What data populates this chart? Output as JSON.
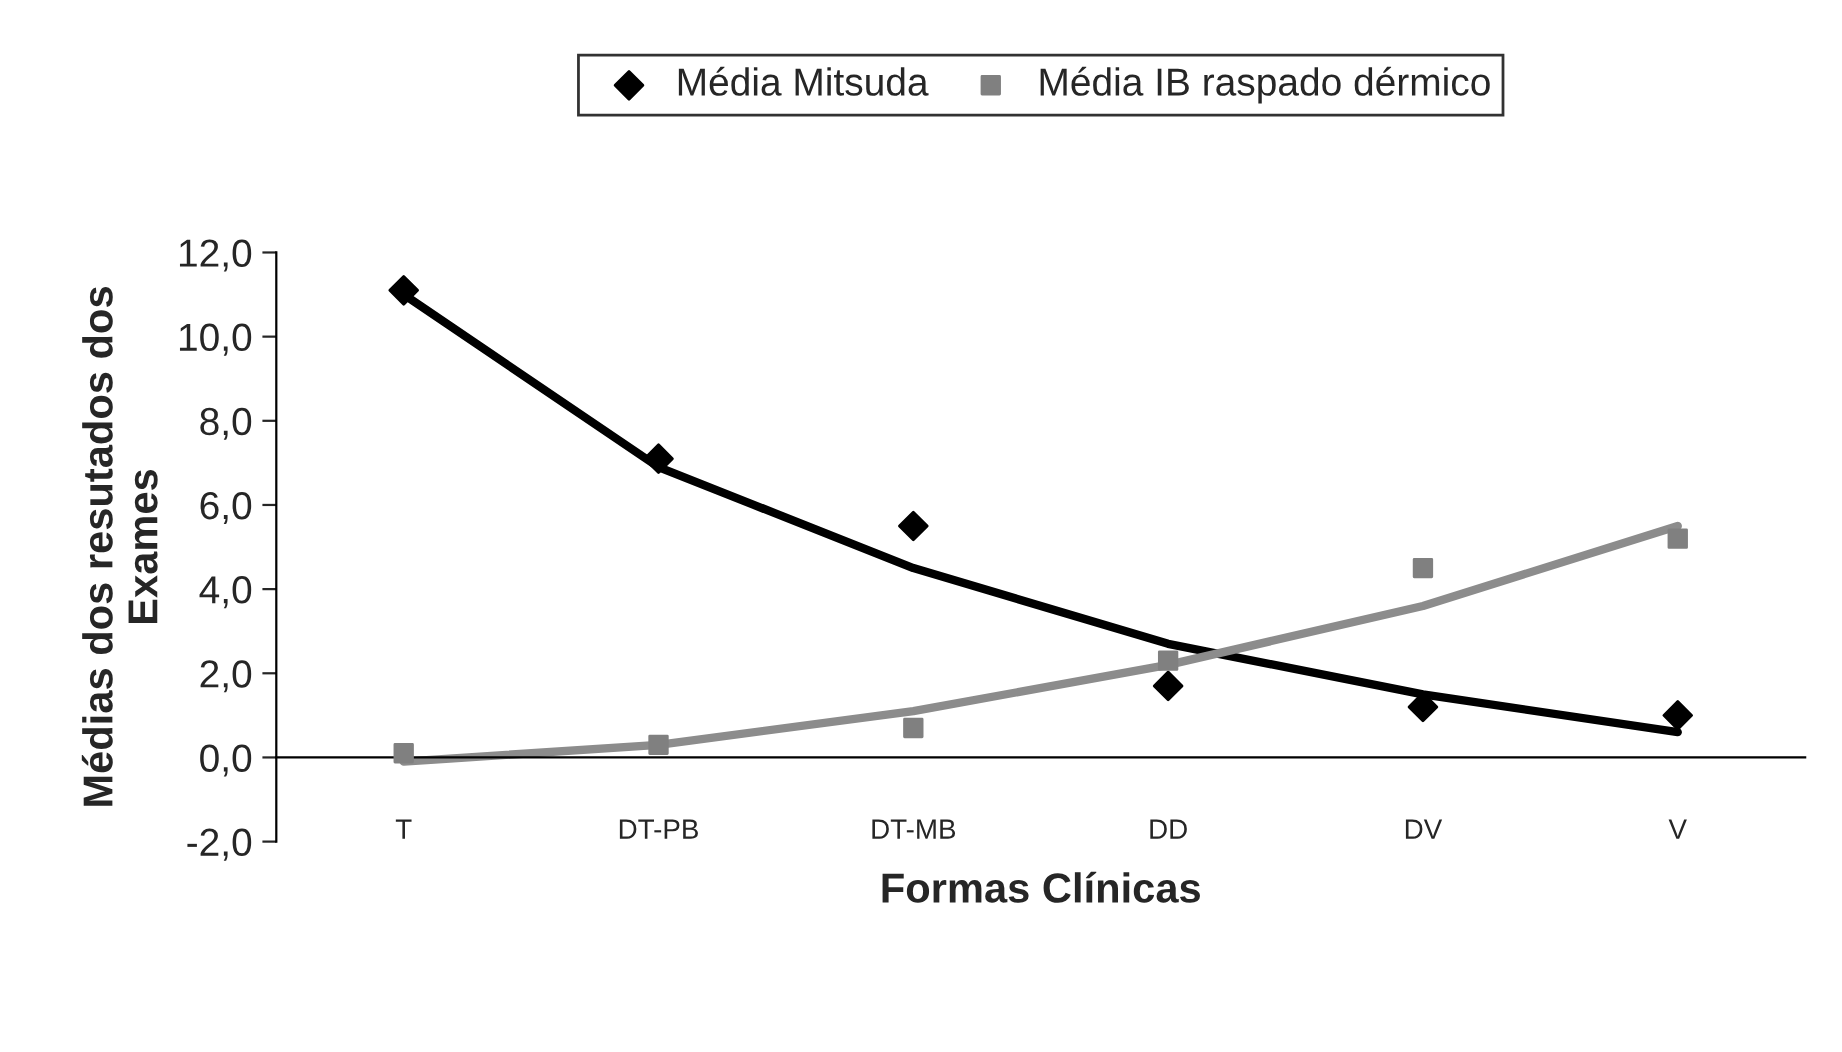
{
  "chart_data": {
    "type": "scatter",
    "xlabel": "Formas Clínicas",
    "ylabel": "Médias dos resutados dos\nExames",
    "categories": [
      "T",
      "DT-PB",
      "DT-MB",
      "DD",
      "DV",
      "V"
    ],
    "series": [
      {
        "name": "Média Mitsuda",
        "color": "#000000",
        "marker": "diamond",
        "values": [
          11.1,
          7.1,
          5.5,
          1.7,
          1.2,
          1.0
        ]
      },
      {
        "name": "Média IB raspado dérmico",
        "color": "#808080",
        "marker": "square",
        "values": [
          0.1,
          0.3,
          0.7,
          2.3,
          4.5,
          5.2
        ]
      },
      {
        "type": "line",
        "color": "#000000",
        "marker": "none",
        "values": [
          11.0,
          6.9,
          4.5,
          2.7,
          1.5,
          0.6
        ]
      },
      {
        "type": "line",
        "color": "#8c8c8c",
        "marker": "none",
        "values": [
          -0.1,
          0.3,
          1.1,
          2.2,
          3.6,
          5.5
        ]
      }
    ],
    "ylim": [
      -2,
      12
    ],
    "yticks": [
      {
        "value": -2,
        "label": "-2,0"
      },
      {
        "value": 0,
        "label": "0,0"
      },
      {
        "value": 2,
        "label": "2,0"
      },
      {
        "value": 4,
        "label": "4,0"
      },
      {
        "value": 6,
        "label": "6,0"
      },
      {
        "value": 8,
        "label": "8,0"
      },
      {
        "value": 10,
        "label": "10,0"
      },
      {
        "value": 12,
        "label": "12,0"
      }
    ],
    "grid": false,
    "legend": "top"
  }
}
